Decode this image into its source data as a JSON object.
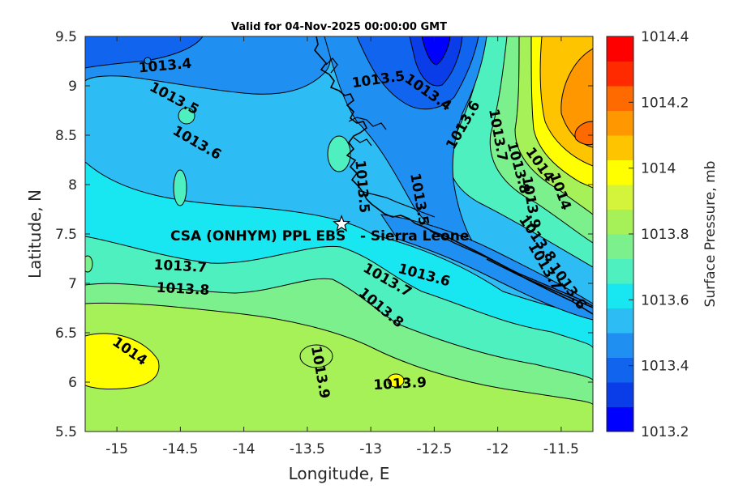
{
  "figure": {
    "title": "Valid for 04-Nov-2025 00:00:00 GMT",
    "xlabel": "Longitude, E",
    "ylabel": "Latitude, N",
    "station_label": "CSA (ONHYM) PPL EBS   - Sierra Leone",
    "colorbar_label": "Surface Pressure, mb"
  },
  "chart_data": {
    "type": "heatmap",
    "variable": "Surface Pressure, mb",
    "xlim": [
      -15.25,
      -11.25
    ],
    "ylim": [
      5.5,
      9.5
    ],
    "x_ticks": [
      -15,
      -14.5,
      -14,
      -13.5,
      -13,
      -12.5,
      -12,
      -11.5
    ],
    "y_ticks": [
      5.5,
      6,
      6.5,
      7,
      7.5,
      8,
      8.5,
      9,
      9.5
    ],
    "colorbar": {
      "min": 1013.2,
      "max": 1014.4,
      "step": 0.1,
      "tick_values": [
        1013.2,
        1013.4,
        1013.6,
        1013.8,
        1014,
        1014.2,
        1014.4
      ],
      "tick_labels": [
        "1013.2",
        "1013.4",
        "1013.6",
        "1013.8",
        "1014",
        "1014.2",
        "1014.4"
      ],
      "colors": [
        "#0000ff",
        "#0a3ce8",
        "#1064ee",
        "#1f90f2",
        "#2dbcf3",
        "#18e6f0",
        "#4ff0c0",
        "#7cf08c",
        "#a6f058",
        "#d3f43a",
        "#ffff00",
        "#ffc400",
        "#ff9800",
        "#ff6a00",
        "#ff2a00",
        "#ff0000"
      ]
    },
    "station": {
      "lon": -13.23,
      "lat": 7.6
    },
    "contour_labels": [
      {
        "text": "1013.4",
        "lon": -14.62,
        "lat": 9.2,
        "angle": -5
      },
      {
        "text": "1013.5",
        "lon": -14.55,
        "lat": 8.87,
        "angle": 28
      },
      {
        "text": "1013.6",
        "lon": -14.37,
        "lat": 8.42,
        "angle": 30
      },
      {
        "text": "1013.5",
        "lon": -12.94,
        "lat": 9.06,
        "angle": -8
      },
      {
        "text": "1013.4",
        "lon": -12.55,
        "lat": 8.93,
        "angle": 35
      },
      {
        "text": "1013.6",
        "lon": -12.27,
        "lat": 8.6,
        "angle": -60
      },
      {
        "text": "1013.7",
        "lon": -12.0,
        "lat": 8.5,
        "angle": 80
      },
      {
        "text": "1013.8",
        "lon": -11.84,
        "lat": 8.17,
        "angle": 75
      },
      {
        "text": "1014",
        "lon": -11.67,
        "lat": 8.2,
        "angle": 55
      },
      {
        "text": "1014",
        "lon": -11.51,
        "lat": 7.93,
        "angle": 70
      },
      {
        "text": "1013.9",
        "lon": -11.74,
        "lat": 7.82,
        "angle": 80
      },
      {
        "text": "1013.8",
        "lon": -11.69,
        "lat": 7.45,
        "angle": 55
      },
      {
        "text": "1013.7",
        "lon": -11.63,
        "lat": 7.17,
        "angle": 60
      },
      {
        "text": "1013.6",
        "lon": -11.45,
        "lat": 6.97,
        "angle": 55
      },
      {
        "text": "1013.5",
        "lon": -13.07,
        "lat": 7.98,
        "angle": 85
      },
      {
        "text": "1013.5",
        "lon": -12.62,
        "lat": 7.85,
        "angle": 80
      },
      {
        "text": "1013.7",
        "lon": -14.5,
        "lat": 7.17,
        "angle": 3
      },
      {
        "text": "1013.8",
        "lon": -14.48,
        "lat": 6.94,
        "angle": 3
      },
      {
        "text": "1013.6",
        "lon": -12.58,
        "lat": 7.08,
        "angle": 15
      },
      {
        "text": "1013.7",
        "lon": -12.87,
        "lat": 7.03,
        "angle": 30
      },
      {
        "text": "1013.8",
        "lon": -12.92,
        "lat": 6.75,
        "angle": 40
      },
      {
        "text": "1014",
        "lon": -14.9,
        "lat": 6.31,
        "angle": 35
      },
      {
        "text": "1013.9",
        "lon": -13.4,
        "lat": 6.1,
        "angle": 80
      },
      {
        "text": "1013.9",
        "lon": -12.77,
        "lat": 5.98,
        "angle": -3
      }
    ]
  }
}
